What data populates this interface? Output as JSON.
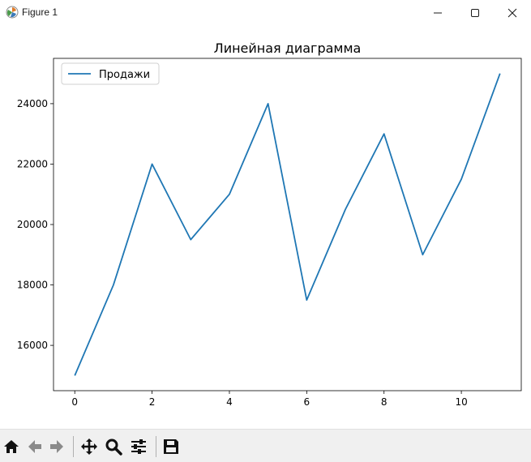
{
  "window": {
    "title": "Figure 1",
    "icons": [
      "matplotlib-icon",
      "minimize-icon",
      "maximize-icon",
      "close-icon"
    ]
  },
  "toolbar": {
    "buttons": [
      "home-icon",
      "back-icon",
      "forward-icon",
      "pan-icon",
      "zoom-icon",
      "configure-subplots-icon",
      "save-icon"
    ]
  },
  "chart_data": {
    "type": "line",
    "title": "Линейная диаграмма",
    "xlabel": "",
    "ylabel": "",
    "x": [
      0,
      1,
      2,
      3,
      4,
      5,
      6,
      7,
      8,
      9,
      10,
      11
    ],
    "series": [
      {
        "name": "Продажи",
        "color": "#1f77b4",
        "values": [
          15000,
          18000,
          22000,
          19500,
          21000,
          24000,
          17500,
          20500,
          23000,
          19000,
          21500,
          25000
        ]
      }
    ],
    "xticks": [
      "0",
      "2",
      "4",
      "6",
      "8",
      "10"
    ],
    "yticks": [
      "16000",
      "18000",
      "20000",
      "22000",
      "24000"
    ],
    "xlim": [
      -0.55,
      11.55
    ],
    "ylim": [
      14500,
      25500
    ],
    "grid": false,
    "legend_position": "top-left"
  }
}
